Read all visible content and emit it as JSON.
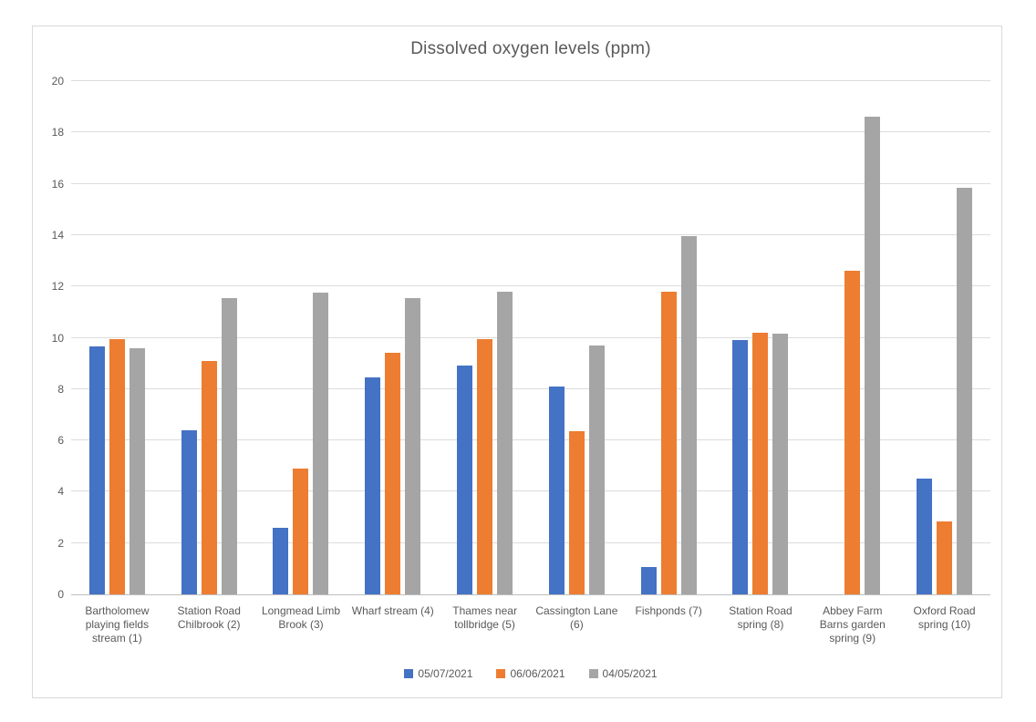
{
  "chart_data": {
    "type": "bar",
    "title": "Dissolved oxygen levels (ppm)",
    "categories": [
      "Bartholomew playing fields stream (1)",
      "Station Road Chilbrook (2)",
      "Longmead Limb Brook (3)",
      "Wharf stream (4)",
      "Thames near tollbridge (5)",
      "Cassington Lane (6)",
      "Fishponds (7)",
      "Station Road spring (8)",
      "Abbey Farm Barns garden spring (9)",
      "Oxford Road spring (10)"
    ],
    "series": [
      {
        "name": "05/07/2021",
        "color": "#4472c4",
        "values": [
          9.65,
          6.4,
          2.6,
          8.45,
          8.9,
          8.1,
          1.05,
          9.9,
          null,
          4.5
        ]
      },
      {
        "name": "06/06/2021",
        "color": "#ed7d31",
        "values": [
          9.95,
          9.1,
          4.9,
          9.4,
          9.95,
          6.35,
          11.8,
          10.2,
          12.6,
          2.85
        ]
      },
      {
        "name": "04/05/2021",
        "color": "#a5a5a5",
        "values": [
          9.6,
          11.55,
          11.75,
          11.55,
          11.8,
          9.7,
          13.95,
          10.15,
          18.6,
          15.85
        ]
      }
    ],
    "xlabel": "",
    "ylabel": "",
    "ylim": [
      0,
      20
    ],
    "yticks": [
      0,
      2,
      4,
      6,
      8,
      10,
      12,
      14,
      16,
      18,
      20
    ],
    "grid": true,
    "legend_position": "bottom"
  },
  "colors": {
    "gridline": "#dcdcdc",
    "axis_line": "#bfbfbf",
    "text": "#595959",
    "chart_border": "#d9d9d9",
    "background": "#ffffff"
  }
}
